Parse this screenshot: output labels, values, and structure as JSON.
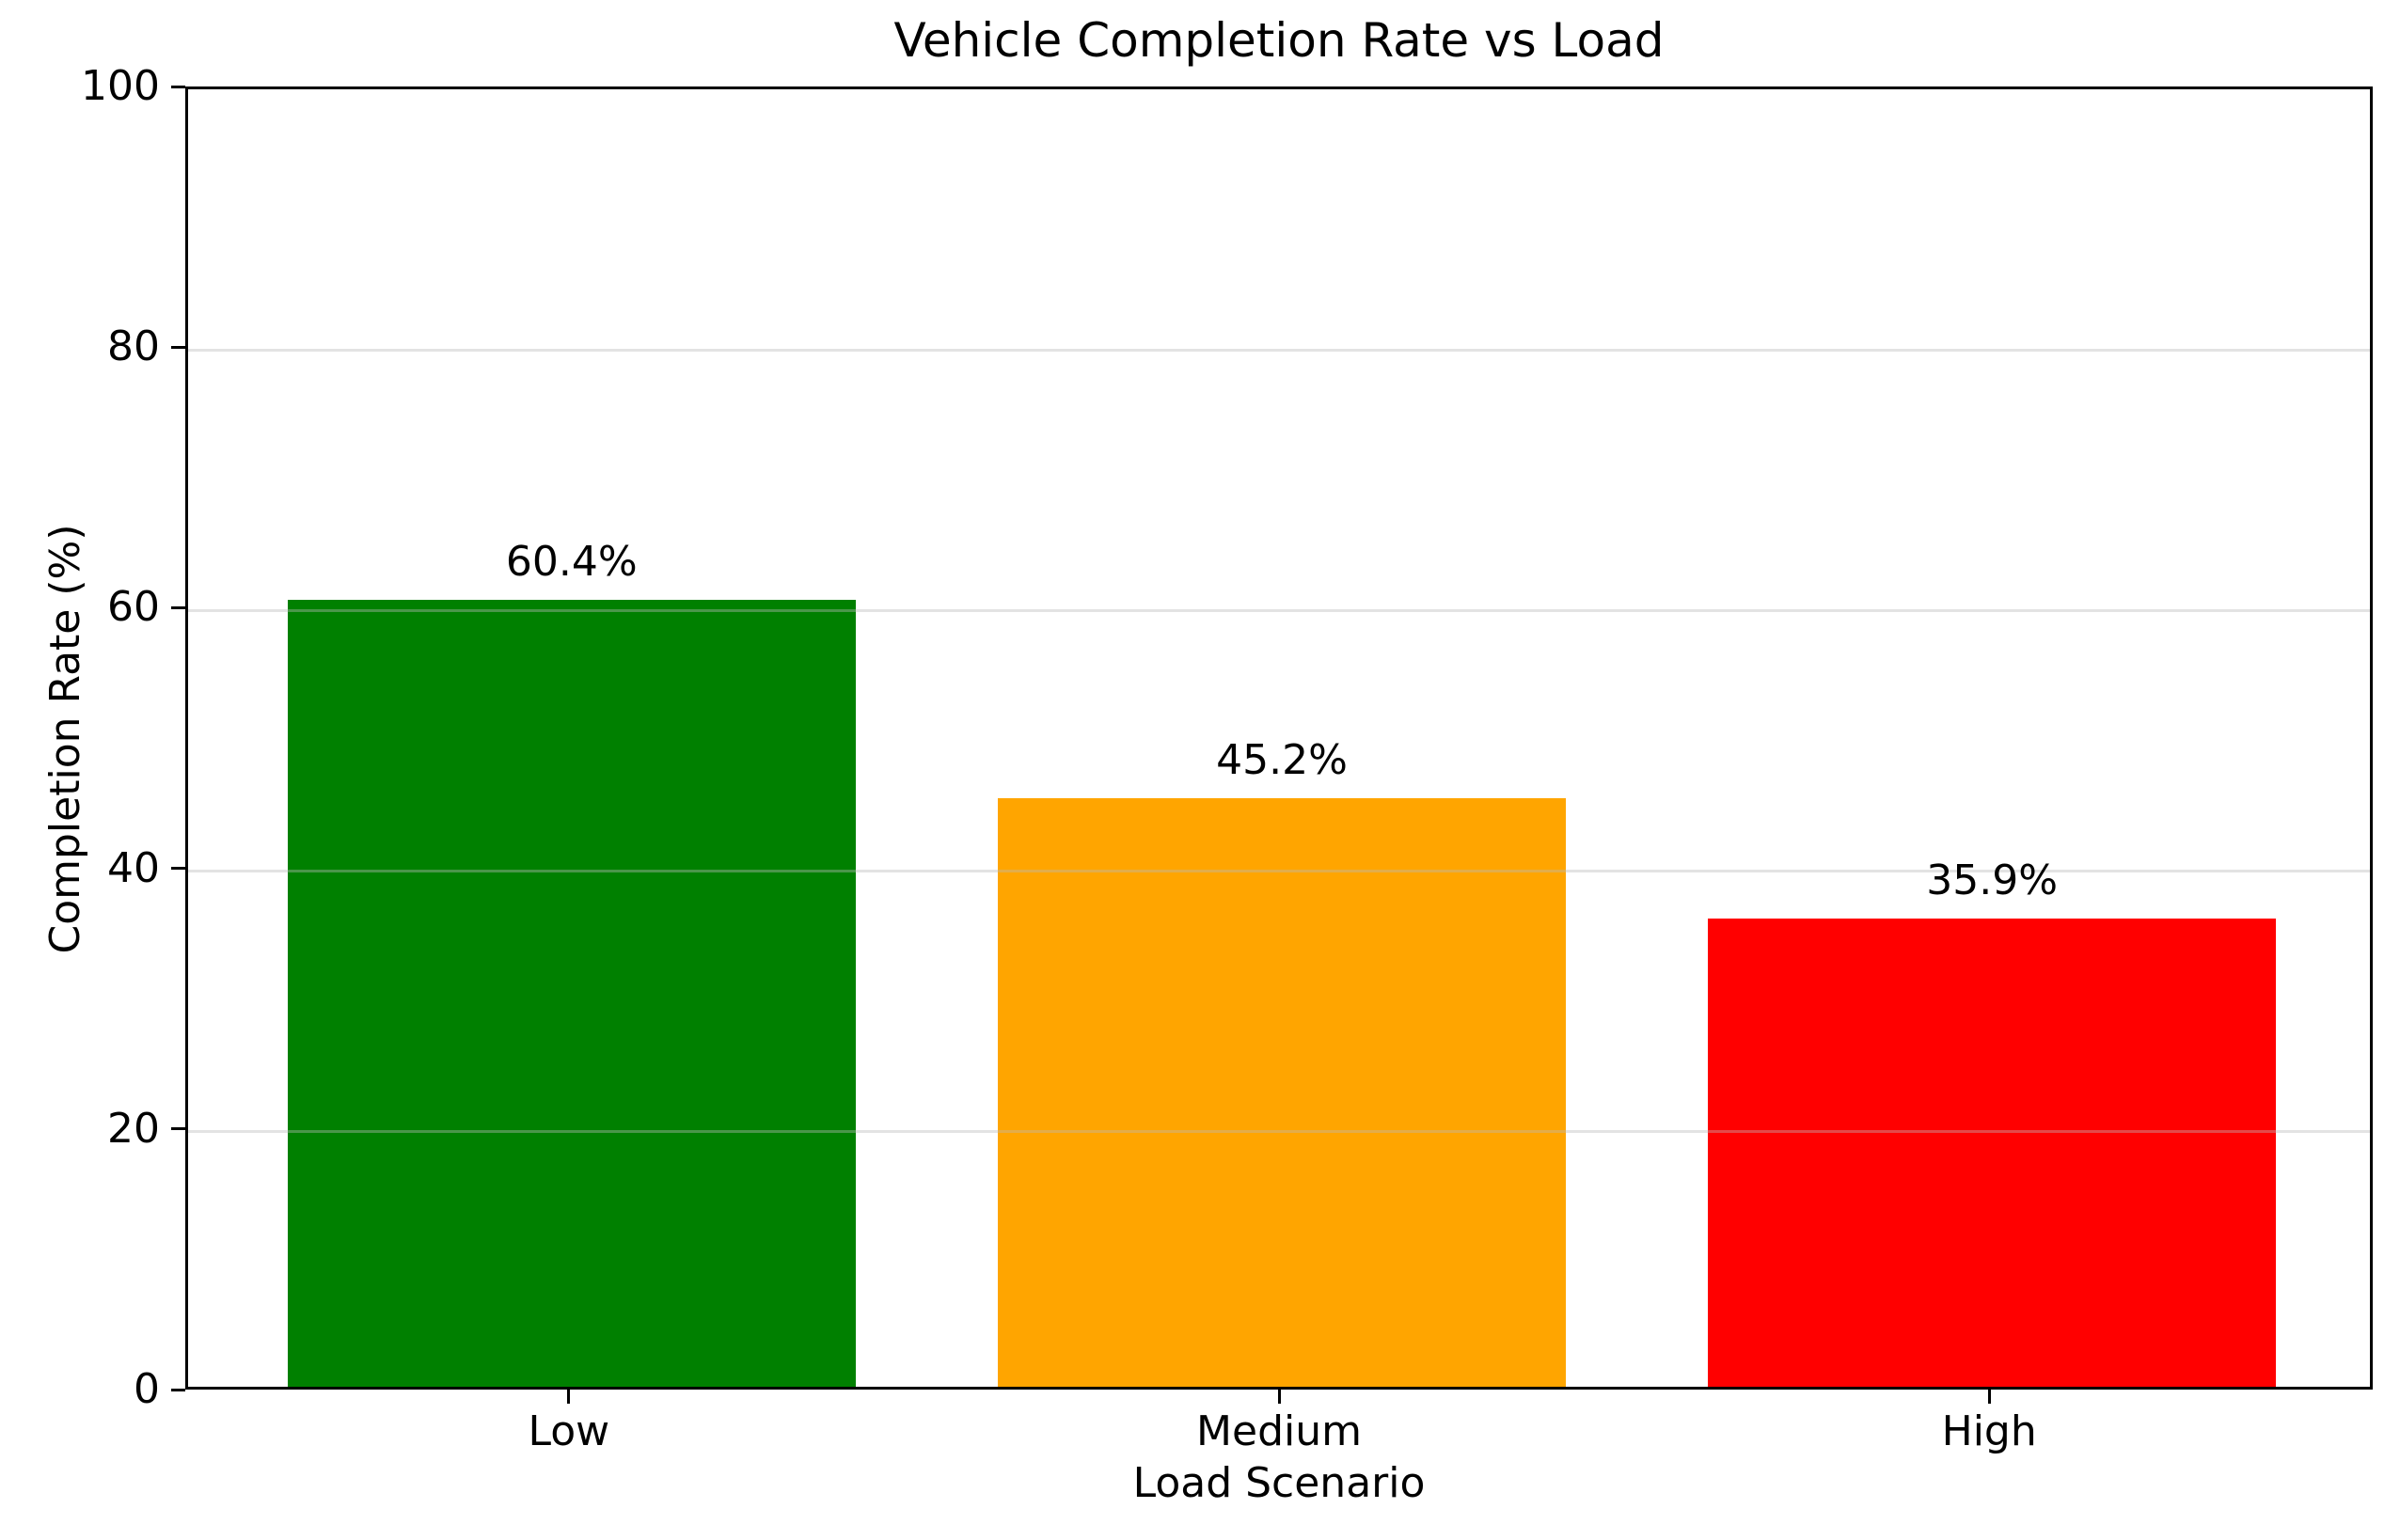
{
  "chart_data": {
    "type": "bar",
    "title": "Vehicle Completion Rate vs Load",
    "xlabel": "Load Scenario",
    "ylabel": "Completion Rate (%)",
    "categories": [
      "Low",
      "Medium",
      "High"
    ],
    "values": [
      60.4,
      45.2,
      35.9
    ],
    "bar_labels": [
      "60.4%",
      "45.2%",
      "35.9%"
    ],
    "bar_colors": [
      "#008000",
      "#FFA500",
      "#FF0000"
    ],
    "ylim": [
      0,
      100
    ],
    "yticks": [
      0,
      20,
      40,
      60,
      80,
      100
    ],
    "ytick_labels": [
      "0",
      "20",
      "40",
      "60",
      "80",
      "100"
    ],
    "bar_width_fraction": 0.8,
    "grid": "horizontal",
    "gridline_color": "#e6e6e6",
    "legend": "none",
    "background_color": "#ffffff"
  }
}
